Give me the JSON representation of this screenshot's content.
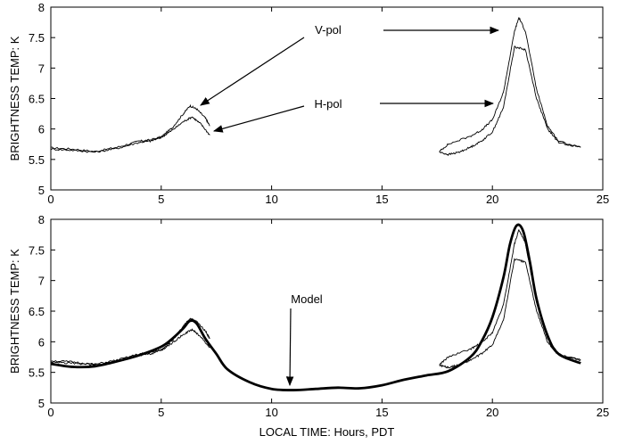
{
  "chart_data": [
    {
      "type": "line",
      "panel": "top",
      "title": "",
      "xlabel": "",
      "ylabel": "BRIGHTNESS TEMP: K",
      "xlim": [
        0,
        25
      ],
      "ylim": [
        5,
        8
      ],
      "x_ticks": [
        "0",
        "5",
        "10",
        "15",
        "20",
        "25"
      ],
      "y_ticks": [
        "5",
        "5.5",
        "6",
        "6.5",
        "7",
        "7.5",
        "8"
      ],
      "grid": false,
      "annotations": [
        {
          "label": "V-pol",
          "points_to": "V-pol peaks near 6.4 h and 21.3 h"
        },
        {
          "label": "H-pol",
          "points_to": "H-pol peaks near 6.5 h and 21.0 h"
        }
      ],
      "series": [
        {
          "name": "V-pol",
          "segments": [
            {
              "x": [
                0,
                1,
                2,
                3,
                4,
                4.5,
                5,
                5.5,
                6,
                6.3,
                6.6,
                7.0,
                7.2
              ],
              "y": [
                5.69,
                5.67,
                5.63,
                5.7,
                5.8,
                5.82,
                5.87,
                6.02,
                6.25,
                6.38,
                6.33,
                6.18,
                6.05
              ]
            },
            {
              "x": [
                17.6,
                18,
                19,
                19.5,
                20,
                20.5,
                21,
                21.2,
                21.5,
                22,
                22.5,
                23,
                24
              ],
              "y": [
                5.63,
                5.75,
                5.88,
                5.98,
                6.15,
                6.6,
                7.6,
                7.83,
                7.6,
                6.65,
                6.05,
                5.8,
                5.7
              ]
            }
          ]
        },
        {
          "name": "H-pol",
          "segments": [
            {
              "x": [
                0,
                1,
                2,
                3,
                4,
                4.5,
                5,
                5.5,
                6,
                6.4,
                6.8,
                7.2
              ],
              "y": [
                5.67,
                5.65,
                5.62,
                5.68,
                5.78,
                5.8,
                5.86,
                5.98,
                6.12,
                6.2,
                6.08,
                5.9
              ]
            },
            {
              "x": [
                17.6,
                18,
                18.5,
                19,
                19.5,
                20,
                20.5,
                21,
                21.5,
                22,
                22.5,
                23,
                24
              ],
              "y": [
                5.62,
                5.58,
                5.62,
                5.7,
                5.8,
                5.95,
                6.35,
                7.35,
                7.3,
                6.5,
                6.0,
                5.78,
                5.7
              ]
            }
          ]
        }
      ]
    },
    {
      "type": "line",
      "panel": "bottom",
      "title": "",
      "xlabel": "LOCAL TIME:  Hours, PDT",
      "ylabel": "BRIGHTNESS TEMP: K",
      "xlim": [
        0,
        25
      ],
      "ylim": [
        5,
        8
      ],
      "x_ticks": [
        "0",
        "5",
        "10",
        "15",
        "20",
        "25"
      ],
      "y_ticks": [
        "5",
        "5.5",
        "6",
        "6.5",
        "7",
        "7.5",
        "8"
      ],
      "grid": false,
      "annotations": [
        {
          "label": "Model",
          "points_to": "model curve near 11 h"
        }
      ],
      "series": [
        {
          "name": "Model",
          "x": [
            0,
            1,
            2,
            3,
            4,
            5,
            5.5,
            6,
            6.3,
            6.6,
            7,
            7.5,
            8,
            9,
            10,
            11,
            12,
            13,
            14,
            15,
            16,
            17,
            18,
            19,
            19.5,
            20,
            20.5,
            20.8,
            21.1,
            21.4,
            21.7,
            22,
            22.5,
            23,
            24
          ],
          "y": [
            5.64,
            5.59,
            5.6,
            5.68,
            5.78,
            5.92,
            6.05,
            6.22,
            6.34,
            6.3,
            6.05,
            5.8,
            5.55,
            5.34,
            5.23,
            5.21,
            5.23,
            5.25,
            5.24,
            5.29,
            5.38,
            5.45,
            5.52,
            5.75,
            6.0,
            6.4,
            7.05,
            7.6,
            7.9,
            7.8,
            7.3,
            6.7,
            6.1,
            5.8,
            5.65
          ]
        },
        {
          "name": "V-pol",
          "segments": [
            {
              "x": [
                0,
                1,
                2,
                3,
                4,
                4.5,
                5,
                5.5,
                6,
                6.3,
                6.6,
                7.0,
                7.2
              ],
              "y": [
                5.69,
                5.67,
                5.63,
                5.7,
                5.8,
                5.82,
                5.87,
                6.02,
                6.25,
                6.38,
                6.33,
                6.18,
                6.05
              ]
            },
            {
              "x": [
                17.6,
                18,
                19,
                19.5,
                20,
                20.5,
                21,
                21.2,
                21.5,
                22,
                22.5,
                23,
                24
              ],
              "y": [
                5.63,
                5.75,
                5.88,
                5.98,
                6.15,
                6.6,
                7.6,
                7.83,
                7.6,
                6.65,
                6.05,
                5.8,
                5.7
              ]
            }
          ]
        },
        {
          "name": "H-pol",
          "segments": [
            {
              "x": [
                0,
                1,
                2,
                3,
                4,
                4.5,
                5,
                5.5,
                6,
                6.4,
                6.8,
                7.2
              ],
              "y": [
                5.67,
                5.65,
                5.62,
                5.68,
                5.78,
                5.8,
                5.86,
                5.98,
                6.12,
                6.2,
                6.08,
                5.9
              ]
            },
            {
              "x": [
                17.6,
                18,
                18.5,
                19,
                19.5,
                20,
                20.5,
                21,
                21.5,
                22,
                22.5,
                23,
                24
              ],
              "y": [
                5.62,
                5.58,
                5.62,
                5.7,
                5.8,
                5.95,
                6.35,
                7.35,
                7.3,
                6.5,
                6.0,
                5.78,
                5.7
              ]
            }
          ]
        }
      ]
    }
  ]
}
